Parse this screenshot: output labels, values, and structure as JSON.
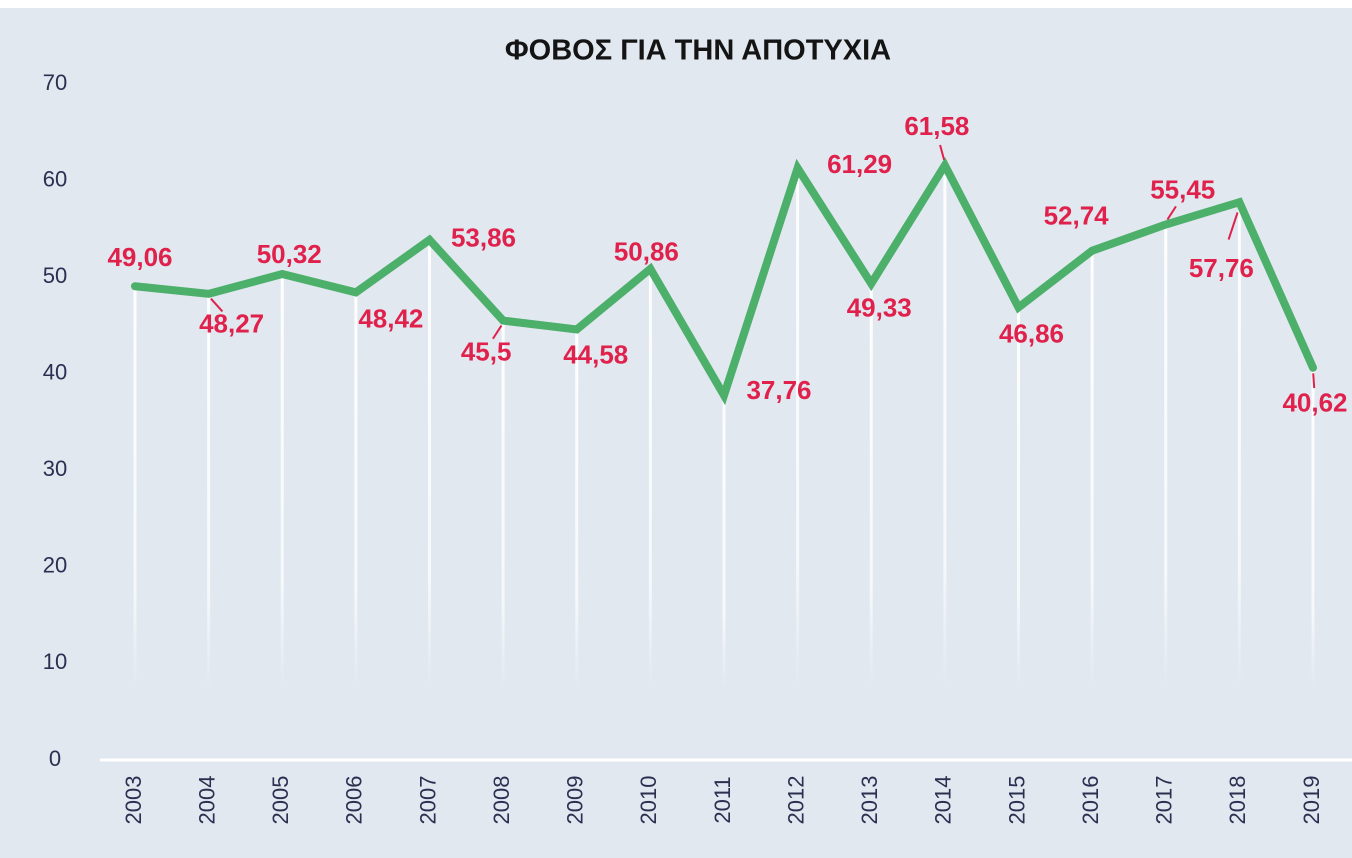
{
  "chart_data": {
    "type": "line",
    "title": "ΦΟΒΟΣ ΓΙΑ ΤΗΝ ΑΠΟΤΥΧΙΑ",
    "categories": [
      "2003",
      "2004",
      "2005",
      "2006",
      "2007",
      "2008",
      "2009",
      "2010",
      "2011",
      "2012",
      "2013",
      "2014",
      "2015",
      "2016",
      "2017",
      "2018",
      "2019"
    ],
    "series": [
      {
        "name": "ΦΟΒΟΣ ΓΙΑ ΤΗΝ ΑΠΟΤΥΧΙΑ",
        "color": "#4caf6a",
        "values": [
          49.06,
          48.27,
          50.32,
          48.42,
          53.86,
          45.5,
          44.58,
          50.86,
          37.76,
          61.29,
          49.33,
          61.58,
          46.86,
          52.74,
          55.45,
          57.76,
          40.62
        ],
        "value_labels": [
          "49,06",
          "48,27",
          "50,32",
          "48,42",
          "53,86",
          "45,5",
          "44,58",
          "50,86",
          "37,76",
          "61,29",
          "49,33",
          "61,58",
          "46,86",
          "52,74",
          "55,45",
          "57,76",
          "40,62"
        ]
      }
    ],
    "ylim": [
      0,
      70
    ],
    "yticks": [
      0,
      10,
      20,
      30,
      40,
      50,
      60,
      70
    ],
    "label_color": "#e0214b"
  }
}
